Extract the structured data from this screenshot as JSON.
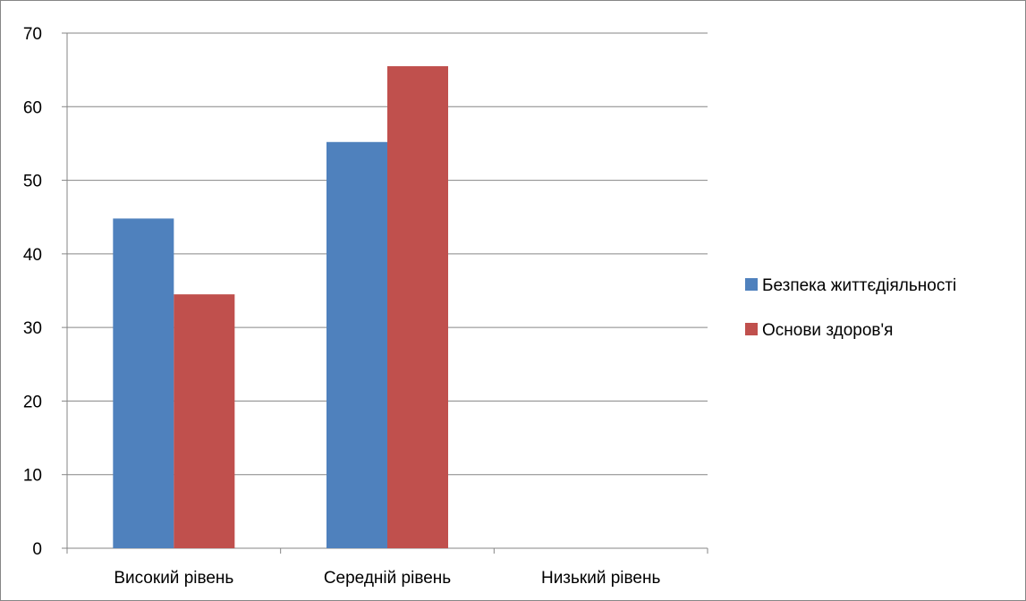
{
  "chart_data": {
    "type": "bar",
    "title": "",
    "xlabel": "",
    "ylabel": "",
    "categories": [
      "Високий рівень",
      "Середній рівень",
      "Низький рівень"
    ],
    "series": [
      {
        "name": "Безпека життєдіяльності",
        "color": "#4F81BD",
        "values": [
          44.8,
          55.2,
          0
        ]
      },
      {
        "name": "Основи здоров'я",
        "color": "#C0504D",
        "values": [
          34.5,
          65.5,
          0
        ]
      }
    ],
    "ylim": [
      0,
      70
    ],
    "yticks": [
      0,
      10,
      20,
      30,
      40,
      50,
      60,
      70
    ],
    "grid": true,
    "legend_position": "right"
  }
}
